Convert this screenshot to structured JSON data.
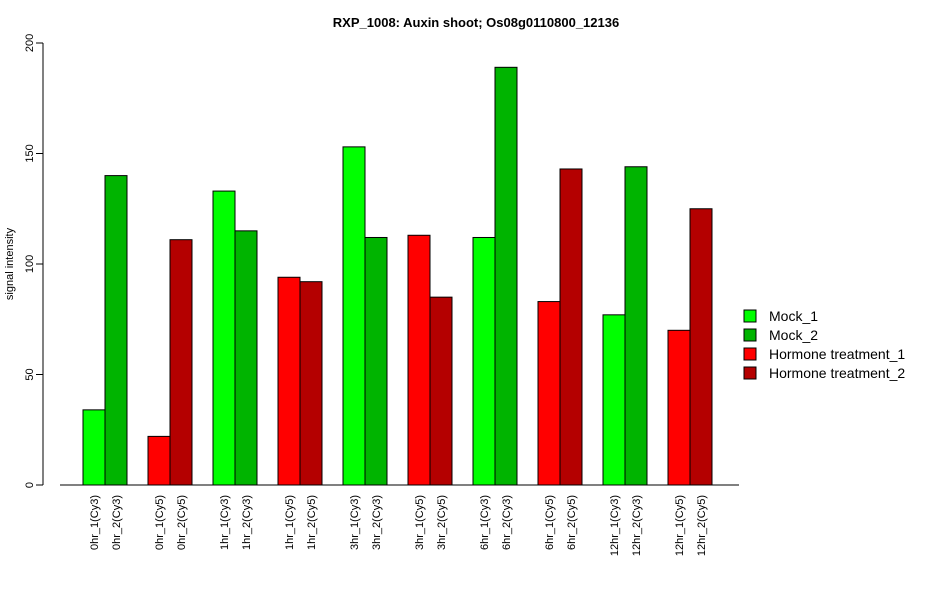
{
  "chart_data": {
    "type": "bar",
    "title": "RXP_1008: Auxin shoot; Os08g0110800_12136",
    "xlabel": "",
    "ylabel": "signal intensity",
    "ylim": [
      0,
      200
    ],
    "yticks": [
      0,
      50,
      100,
      150,
      200
    ],
    "grid": false,
    "legend_position": "right",
    "series": [
      {
        "name": "Mock_1",
        "color": "#00FF00"
      },
      {
        "name": "Mock_2",
        "color": "#00B400"
      },
      {
        "name": "Hormone treatment_1",
        "color": "#FF0000"
      },
      {
        "name": "Hormone treatment_2",
        "color": "#B40000"
      }
    ],
    "categories": [
      "0hr_1(Cy3)",
      "0hr_2(Cy3)",
      "0hr_1(Cy5)",
      "0hr_2(Cy5)",
      "1hr_1(Cy3)",
      "1hr_2(Cy3)",
      "1hr_1(Cy5)",
      "1hr_2(Cy5)",
      "3hr_1(Cy3)",
      "3hr_2(Cy3)",
      "3hr_1(Cy5)",
      "3hr_2(Cy5)",
      "6hr_1(Cy3)",
      "6hr_2(Cy3)",
      "6hr_1(Cy5)",
      "6hr_2(Cy5)",
      "12hr_1(Cy3)",
      "12hr_2(Cy3)",
      "12hr_1(Cy5)",
      "12hr_2(Cy5)"
    ],
    "values": [
      34,
      140,
      22,
      111,
      133,
      115,
      94,
      92,
      153,
      112,
      113,
      85,
      112,
      189,
      83,
      143,
      77,
      144,
      70,
      125
    ],
    "bar_series": [
      0,
      1,
      2,
      3,
      0,
      1,
      2,
      3,
      0,
      1,
      2,
      3,
      0,
      1,
      2,
      3,
      0,
      1,
      2,
      3
    ]
  }
}
